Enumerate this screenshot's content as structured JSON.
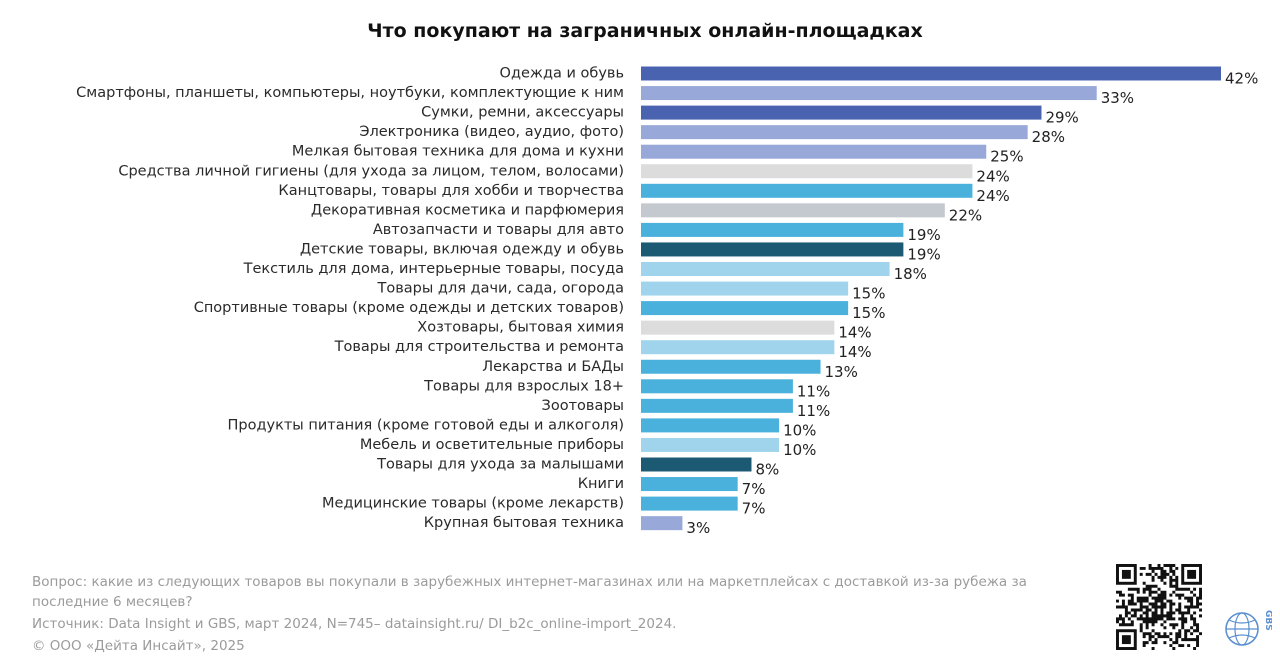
{
  "chart_data": {
    "type": "bar",
    "orientation": "horizontal",
    "title": "Что покупают на заграничных онлайн-площадках",
    "xlim": [
      0,
      42
    ],
    "categories": [
      "Одежда и обувь",
      "Смартфоны, планшеты, компьютеры, ноутбуки, комплектующие к ним",
      "Сумки, ремни, аксессуары",
      "Электроника (видео, аудио, фото)",
      "Мелкая бытовая техника для дома и кухни",
      "Средства личной гигиены (для ухода за лицом, телом, волосами)",
      "Канцтовары, товары для хобби и творчества",
      "Декоративная косметика и парфюмерия",
      "Автозапчасти и товары для авто",
      "Детские товары, включая одежду и обувь",
      "Текстиль для дома, интерьерные товары, посуда",
      "Товары для дачи, сада, огорода",
      "Спортивные товары (кроме одежды и детских товаров)",
      "Хозтовары, бытовая химия",
      "Товары для строительства и ремонта",
      "Лекарства и БАДы",
      "Товары для взрослых 18+",
      "Зоотовары",
      "Продукты питания (кроме готовой еды и алкоголя)",
      "Мебель и осветительные приборы",
      "Товары для ухода за малышами",
      "Книги",
      "Медицинские товары (кроме лекарств)",
      "Крупная бытовая техника"
    ],
    "values": [
      42,
      33,
      29,
      28,
      25,
      24,
      24,
      22,
      19,
      19,
      18,
      15,
      15,
      14,
      14,
      13,
      11,
      11,
      10,
      10,
      8,
      7,
      7,
      3
    ],
    "value_labels": [
      "42%",
      "33%",
      "29%",
      "28%",
      "25%",
      "24%",
      "24%",
      "22%",
      "19%",
      "19%",
      "18%",
      "15%",
      "15%",
      "14%",
      "14%",
      "13%",
      "11%",
      "11%",
      "10%",
      "10%",
      "8%",
      "7%",
      "7%",
      "3%"
    ],
    "colors": [
      "#4a63b0",
      "#98a9d9",
      "#4a63b0",
      "#98a9d9",
      "#98a9d9",
      "#dcdcdc",
      "#4ab0dc",
      "#c4c9cf",
      "#4ab0dc",
      "#1c5a74",
      "#9fd4ec",
      "#9fd4ec",
      "#4ab0dc",
      "#dcdcdc",
      "#9fd4ec",
      "#4ab0dc",
      "#4ab0dc",
      "#4ab0dc",
      "#4ab0dc",
      "#9fd4ec",
      "#1c5a74",
      "#4ab0dc",
      "#4ab0dc",
      "#98a9d9"
    ],
    "grid": false,
    "legend": "none"
  },
  "footer": {
    "question": "Вопрос: какие из следующих товаров вы покупали в зарубежных интернет-магазинах или на маркетплейсах с доставкой из-за рубежа за последние 6 месяцев?",
    "source": "Источник: Data Insight и GBS, март 2024, N=745– datainsight.ru/ DI_b2c_online-import_2024.",
    "copyright": "© ООО «Дейта Инсайт», 2025"
  },
  "logo": {
    "text": "GBS",
    "color": "#5b8fd0"
  }
}
